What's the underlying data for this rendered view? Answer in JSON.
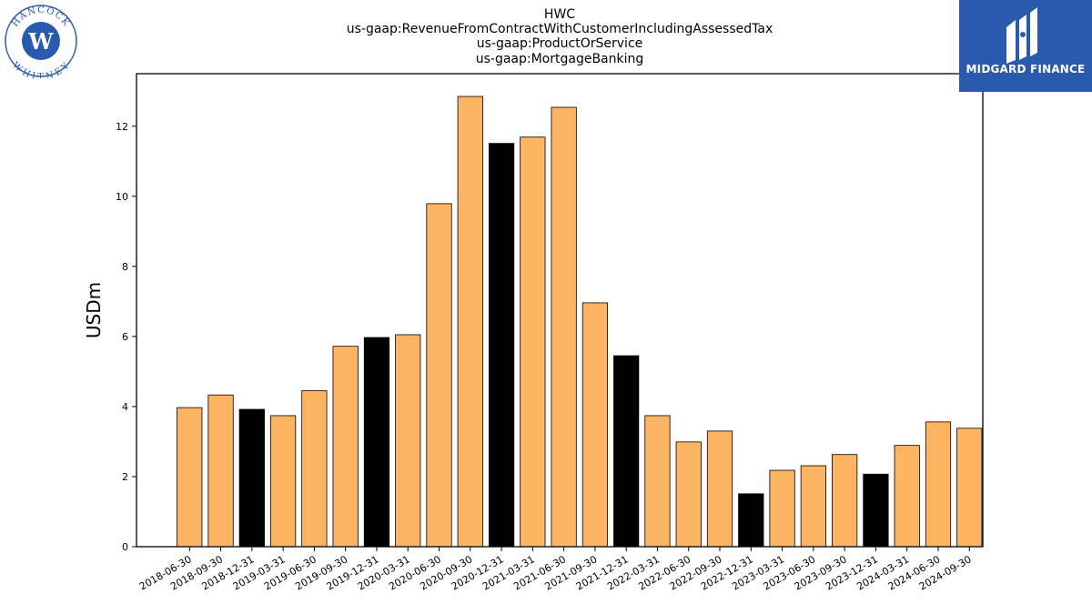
{
  "header": {
    "title_lines": [
      "HWC",
      "us-gaap:RevenueFromContractWithCustomerIncludingAssessedTax",
      "us-gaap:ProductOrService",
      "us-gaap:MortgageBanking"
    ]
  },
  "logos": {
    "left": {
      "top_text": "HANCOCK",
      "bottom_text": "WHITNEY",
      "mark": "W",
      "color": "#2a5aad"
    },
    "right": {
      "brand": "MIDGARD FINANCE",
      "background": "#2a5aad"
    }
  },
  "chart_data": {
    "type": "bar",
    "ylabel": "USDm",
    "xlabel": "",
    "ylim": [
      0,
      13.5
    ],
    "yticks": [
      0,
      2,
      4,
      6,
      8,
      10,
      12
    ],
    "grid": false,
    "colors": {
      "regular": "#fdb462",
      "year_end": "#000000",
      "edge": "#000000"
    },
    "categories": [
      "2018-06-30",
      "2018-09-30",
      "2018-12-31",
      "2019-03-31",
      "2019-06-30",
      "2019-09-30",
      "2019-12-31",
      "2020-03-31",
      "2020-06-30",
      "2020-09-30",
      "2020-12-31",
      "2021-03-31",
      "2021-06-30",
      "2021-09-30",
      "2021-12-31",
      "2022-03-31",
      "2022-06-30",
      "2022-09-30",
      "2022-12-31",
      "2023-03-31",
      "2023-06-30",
      "2023-09-30",
      "2023-12-31",
      "2024-03-31",
      "2024-06-30",
      "2024-09-30"
    ],
    "values": [
      3.97,
      4.33,
      3.92,
      3.74,
      4.45,
      5.72,
      5.97,
      6.05,
      9.79,
      12.85,
      11.51,
      11.69,
      12.54,
      6.96,
      5.45,
      3.74,
      2.99,
      3.3,
      1.51,
      2.18,
      2.31,
      2.63,
      2.07,
      2.89,
      3.56,
      3.38
    ]
  }
}
